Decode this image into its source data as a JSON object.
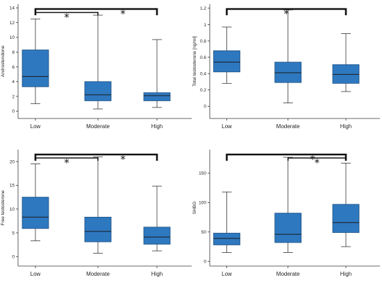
{
  "chart_data": [
    {
      "type": "box",
      "ylabel": "Androstendione",
      "ylim": [
        -1,
        14.5
      ],
      "yticks": [
        0,
        2,
        4,
        6,
        8,
        10,
        12,
        14
      ],
      "categories": [
        "Low",
        "Moderate",
        "High"
      ],
      "boxes": [
        {
          "min": 1.0,
          "q1": 3.3,
          "median": 4.7,
          "q3": 8.3,
          "max": 12.5
        },
        {
          "min": 0.3,
          "q1": 1.4,
          "median": 2.2,
          "q3": 4.0,
          "max": 13.0
        },
        {
          "min": 0.5,
          "q1": 1.4,
          "median": 2.1,
          "q3": 2.5,
          "max": 9.7
        }
      ],
      "significance": [
        {
          "from": 0,
          "to": 1,
          "marker": "*"
        },
        {
          "from": 0,
          "to": 2,
          "marker": "*"
        }
      ],
      "box_color": "#2e78bf"
    },
    {
      "type": "box",
      "ylabel": "Total testosterone [ng/ml]",
      "ylim": [
        -0.15,
        1.25
      ],
      "yticks": [
        0,
        0.2,
        0.4,
        0.6,
        0.8,
        1,
        1.2
      ],
      "categories": [
        "Low",
        "Moderate",
        "High"
      ],
      "boxes": [
        {
          "min": 0.28,
          "q1": 0.42,
          "median": 0.54,
          "q3": 0.68,
          "max": 0.97
        },
        {
          "min": 0.04,
          "q1": 0.29,
          "median": 0.41,
          "q3": 0.54,
          "max": 1.18
        },
        {
          "min": 0.18,
          "q1": 0.28,
          "median": 0.39,
          "q3": 0.51,
          "max": 0.89
        }
      ],
      "significance": [
        {
          "from": 0,
          "to": 2,
          "marker": "*"
        }
      ],
      "box_color": "#2e78bf"
    },
    {
      "type": "box",
      "ylabel": "Free testosterone",
      "ylim": [
        -2,
        22.5
      ],
      "yticks": [
        0,
        5,
        10,
        15,
        20
      ],
      "categories": [
        "Low",
        "Moderate",
        "High"
      ],
      "boxes": [
        {
          "min": 3.3,
          "q1": 5.9,
          "median": 8.3,
          "q3": 12.5,
          "max": 19.5
        },
        {
          "min": 0.7,
          "q1": 3.1,
          "median": 5.3,
          "q3": 8.3,
          "max": 21.0
        },
        {
          "min": 1.2,
          "q1": 2.6,
          "median": 4.1,
          "q3": 6.2,
          "max": 14.8
        }
      ],
      "significance": [
        {
          "from": 0,
          "to": 1,
          "marker": "*"
        },
        {
          "from": 0,
          "to": 2,
          "marker": "*"
        }
      ],
      "box_color": "#2e78bf"
    },
    {
      "type": "box",
      "ylabel": "SHBG",
      "ylim": [
        -8,
        190
      ],
      "yticks": [
        0,
        50,
        100,
        150
      ],
      "categories": [
        "Low",
        "Moderate",
        "High"
      ],
      "boxes": [
        {
          "min": 15,
          "q1": 28,
          "median": 39,
          "q3": 48,
          "max": 118
        },
        {
          "min": 15,
          "q1": 32,
          "median": 46,
          "q3": 82,
          "max": 177
        },
        {
          "min": 25,
          "q1": 49,
          "median": 66,
          "q3": 97,
          "max": 167
        }
      ],
      "significance": [
        {
          "from": 0,
          "to": 2,
          "marker": "*"
        },
        {
          "from": 1,
          "to": 2,
          "marker": "*"
        }
      ],
      "box_color": "#2e78bf"
    }
  ]
}
